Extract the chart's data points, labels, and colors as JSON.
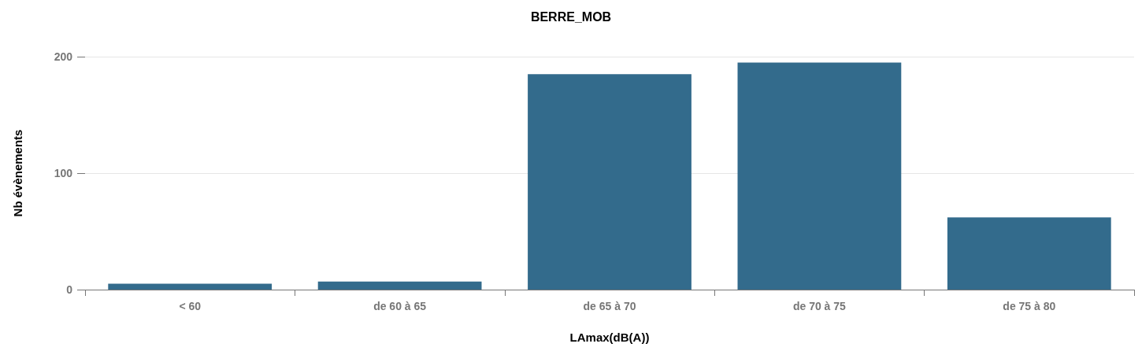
{
  "chart_data": {
    "type": "bar",
    "title": "BERRE_MOB",
    "xlabel": "LAmax(dB(A))",
    "ylabel": "Nb évènements",
    "categories": [
      "< 60",
      "de 60 à 65",
      "de 65 à 70",
      "de 70 à 75",
      "de 75 à 80"
    ],
    "values": [
      5,
      7,
      185,
      195,
      62
    ],
    "color": "#336b8c",
    "ylim": [
      0,
      200
    ],
    "yticks": [
      0,
      100,
      200
    ],
    "grid": "y"
  }
}
